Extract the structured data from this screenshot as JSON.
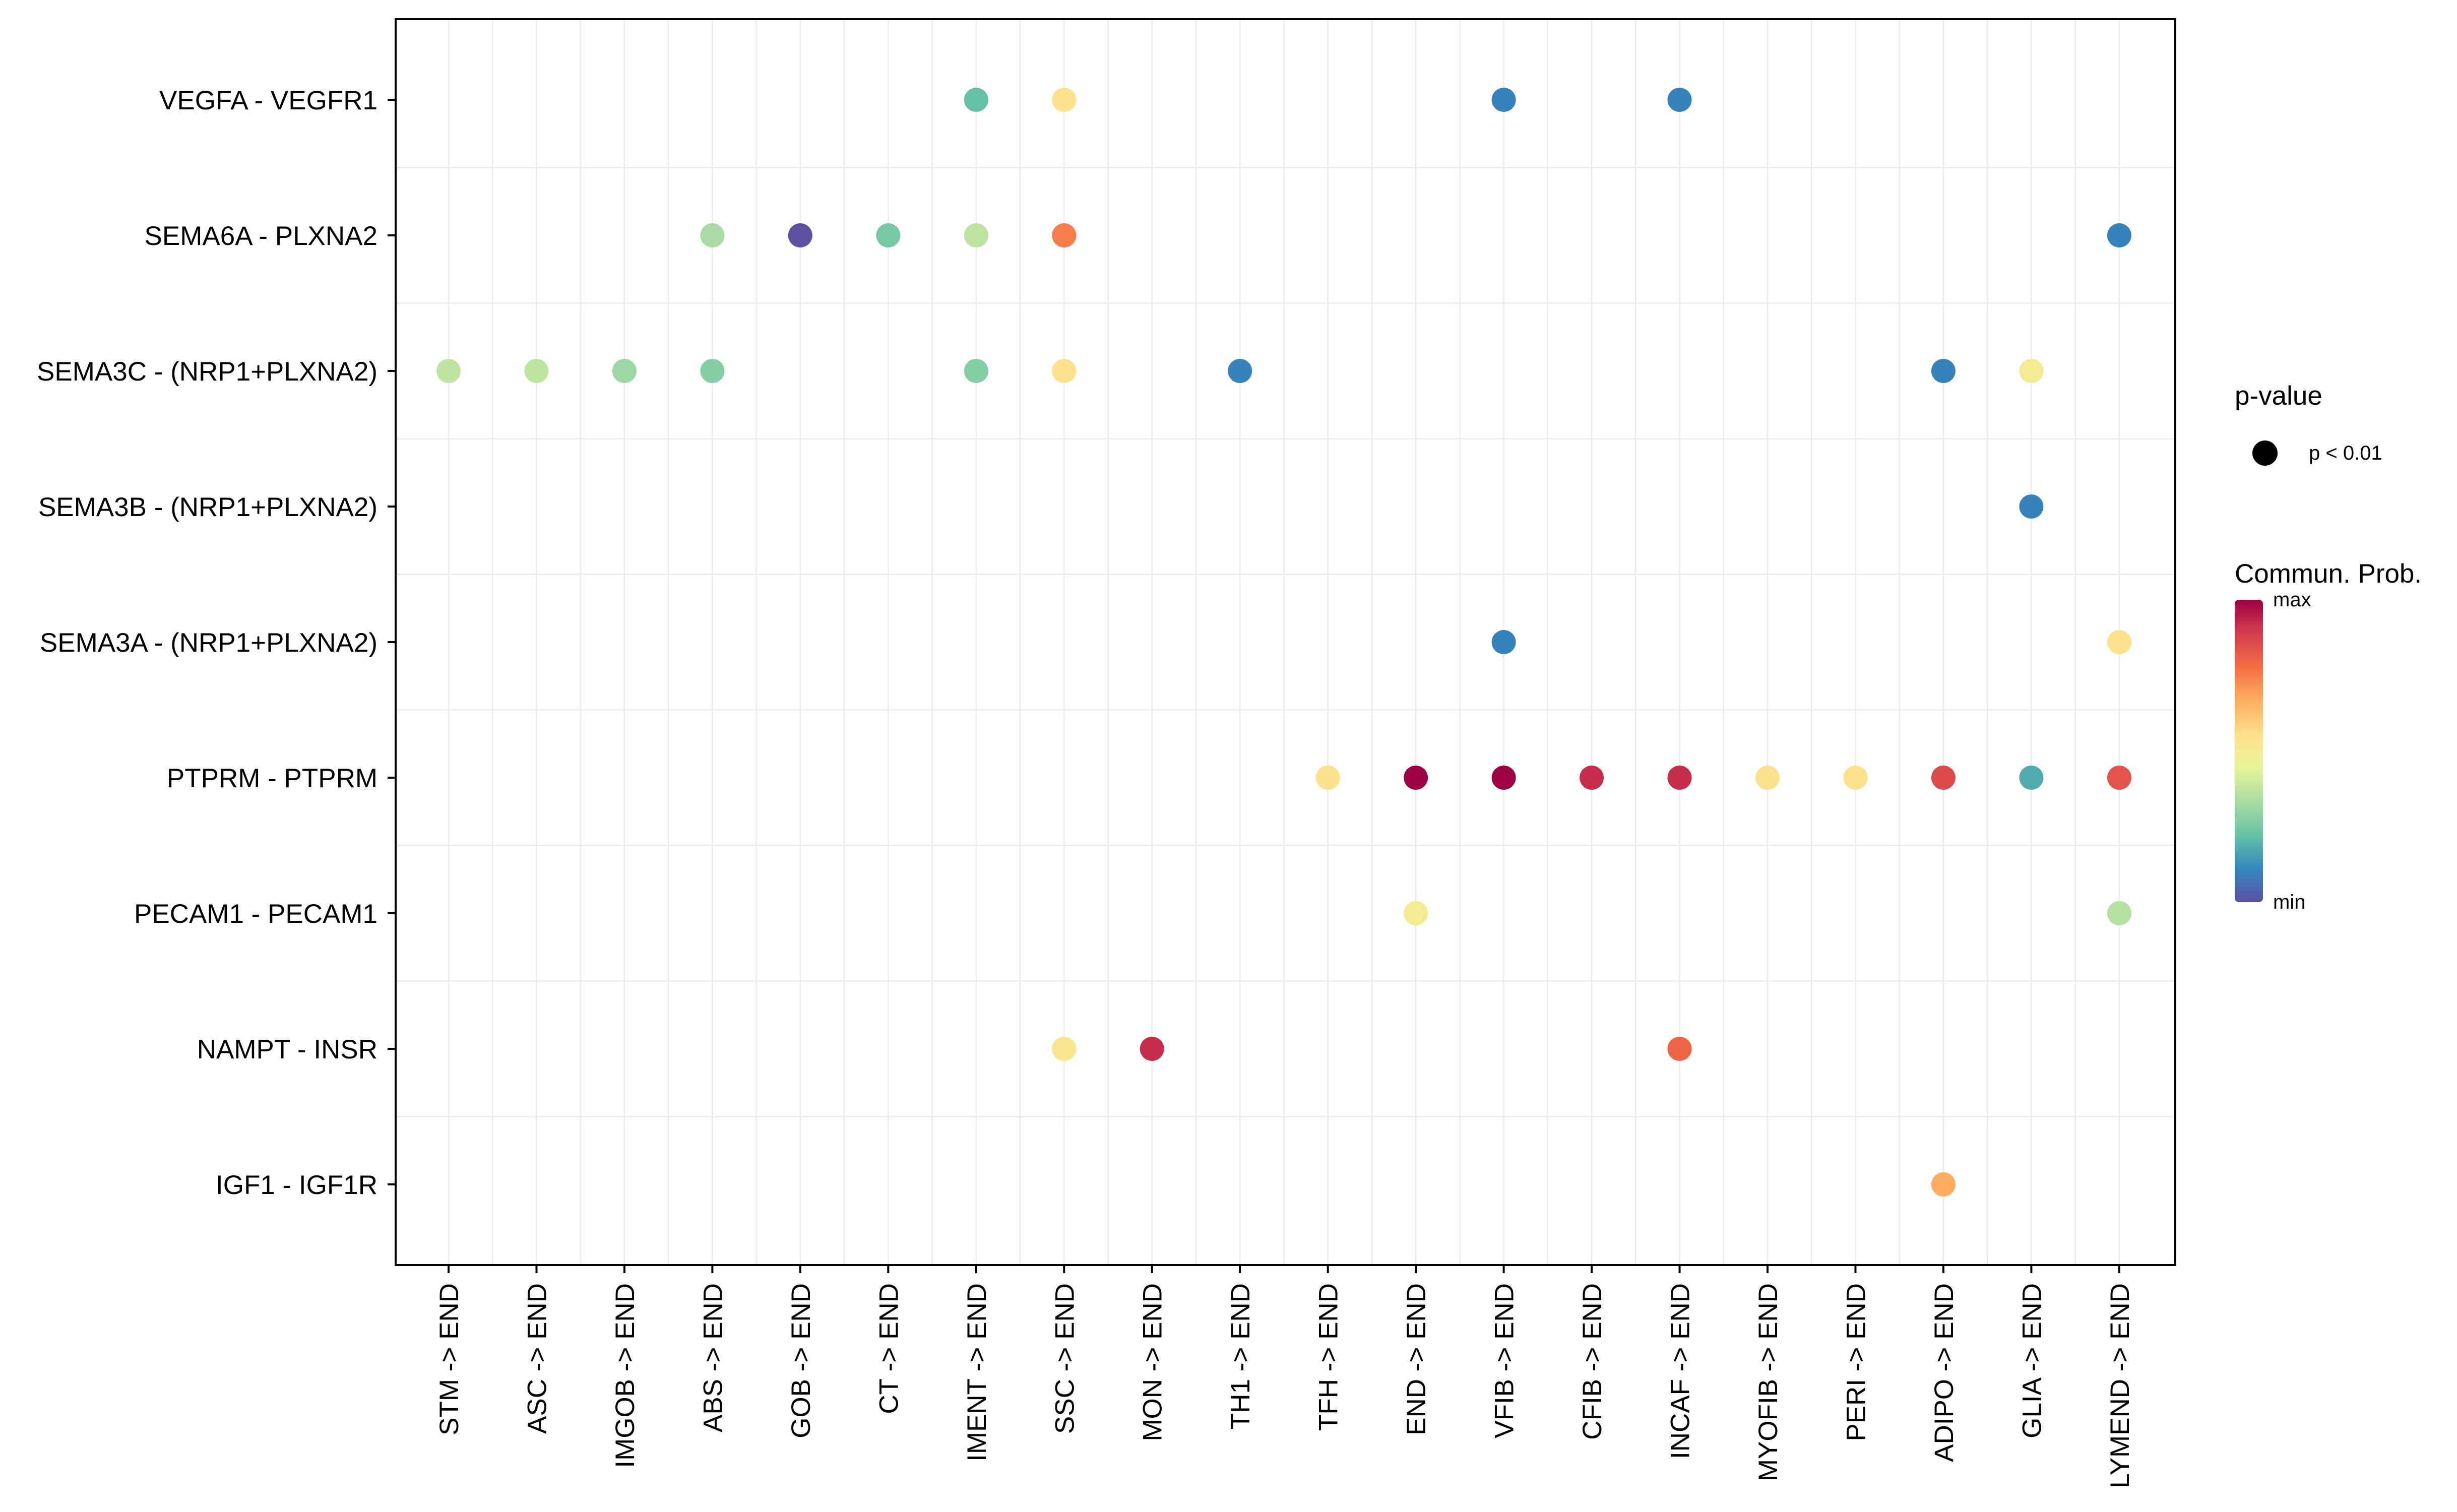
{
  "chart_data": {
    "type": "dot-plot",
    "title": "",
    "xlabel": "",
    "ylabel": "",
    "categories_x": [
      "STM -> END",
      "ASC -> END",
      "IMGOB -> END",
      "ABS -> END",
      "GOB -> END",
      "CT -> END",
      "IMENT -> END",
      "SSC -> END",
      "MON -> END",
      "TH1 -> END",
      "TFH -> END",
      "END -> END",
      "VFIB -> END",
      "CFIB -> END",
      "INCAF -> END",
      "MYOFIB -> END",
      "PERI -> END",
      "ADIPO -> END",
      "GLIA -> END",
      "LYMEND -> END"
    ],
    "categories_y": [
      "VEGFA - VEGFR1",
      "SEMA6A - PLXNA2",
      "SEMA3C - (NRP1+PLXNA2)",
      "SEMA3B - (NRP1+PLXNA2)",
      "SEMA3A - (NRP1+PLXNA2)",
      "PTPRM - PTPRM",
      "PECAM1 - PECAM1",
      "NAMPT - INSR",
      "IGF1 - IGF1R"
    ],
    "value_scale": "relative communication probability, 0 = min, 1 = max",
    "points": [
      {
        "y": "VEGFA - VEGFR1",
        "x": "IMENT -> END",
        "value": 0.22
      },
      {
        "y": "VEGFA - VEGFR1",
        "x": "SSC -> END",
        "value": 0.55
      },
      {
        "y": "VEGFA - VEGFR1",
        "x": "VFIB -> END",
        "value": 0.1
      },
      {
        "y": "VEGFA - VEGFR1",
        "x": "INCAF -> END",
        "value": 0.1
      },
      {
        "y": "SEMA6A - PLXNA2",
        "x": "ABS -> END",
        "value": 0.33
      },
      {
        "y": "SEMA6A - PLXNA2",
        "x": "GOB -> END",
        "value": 0.0
      },
      {
        "y": "SEMA6A - PLXNA2",
        "x": "CT -> END",
        "value": 0.25
      },
      {
        "y": "SEMA6A - PLXNA2",
        "x": "IMENT -> END",
        "value": 0.37
      },
      {
        "y": "SEMA6A - PLXNA2",
        "x": "SSC -> END",
        "value": 0.75
      },
      {
        "y": "SEMA6A - PLXNA2",
        "x": "LYMEND -> END",
        "value": 0.1
      },
      {
        "y": "SEMA3C - (NRP1+PLXNA2)",
        "x": "STM -> END",
        "value": 0.37
      },
      {
        "y": "SEMA3C - (NRP1+PLXNA2)",
        "x": "ASC -> END",
        "value": 0.37
      },
      {
        "y": "SEMA3C - (NRP1+PLXNA2)",
        "x": "IMGOB -> END",
        "value": 0.31
      },
      {
        "y": "SEMA3C - (NRP1+PLXNA2)",
        "x": "ABS -> END",
        "value": 0.27
      },
      {
        "y": "SEMA3C - (NRP1+PLXNA2)",
        "x": "IMENT -> END",
        "value": 0.27
      },
      {
        "y": "SEMA3C - (NRP1+PLXNA2)",
        "x": "SSC -> END",
        "value": 0.55
      },
      {
        "y": "SEMA3C - (NRP1+PLXNA2)",
        "x": "TH1 -> END",
        "value": 0.1
      },
      {
        "y": "SEMA3C - (NRP1+PLXNA2)",
        "x": "ADIPO -> END",
        "value": 0.1
      },
      {
        "y": "SEMA3C - (NRP1+PLXNA2)",
        "x": "GLIA -> END",
        "value": 0.5
      },
      {
        "y": "SEMA3B - (NRP1+PLXNA2)",
        "x": "GLIA -> END",
        "value": 0.1
      },
      {
        "y": "SEMA3A - (NRP1+PLXNA2)",
        "x": "VFIB -> END",
        "value": 0.1
      },
      {
        "y": "SEMA3A - (NRP1+PLXNA2)",
        "x": "LYMEND -> END",
        "value": 0.55
      },
      {
        "y": "PTPRM - PTPRM",
        "x": "TFH -> END",
        "value": 0.55
      },
      {
        "y": "PTPRM - PTPRM",
        "x": "END -> END",
        "value": 1.0
      },
      {
        "y": "PTPRM - PTPRM",
        "x": "VFIB -> END",
        "value": 1.0
      },
      {
        "y": "PTPRM - PTPRM",
        "x": "CFIB -> END",
        "value": 0.92
      },
      {
        "y": "PTPRM - PTPRM",
        "x": "INCAF -> END",
        "value": 0.92
      },
      {
        "y": "PTPRM - PTPRM",
        "x": "MYOFIB -> END",
        "value": 0.55
      },
      {
        "y": "PTPRM - PTPRM",
        "x": "PERI -> END",
        "value": 0.55
      },
      {
        "y": "PTPRM - PTPRM",
        "x": "ADIPO -> END",
        "value": 0.86
      },
      {
        "y": "PTPRM - PTPRM",
        "x": "GLIA -> END",
        "value": 0.18
      },
      {
        "y": "PTPRM - PTPRM",
        "x": "LYMEND -> END",
        "value": 0.84
      },
      {
        "y": "PECAM1 - PECAM1",
        "x": "END -> END",
        "value": 0.5
      },
      {
        "y": "PECAM1 - PECAM1",
        "x": "LYMEND -> END",
        "value": 0.35
      },
      {
        "y": "NAMPT - INSR",
        "x": "SSC -> END",
        "value": 0.52
      },
      {
        "y": "NAMPT - INSR",
        "x": "MON -> END",
        "value": 0.92
      },
      {
        "y": "NAMPT - INSR",
        "x": "INCAF -> END",
        "value": 0.8
      },
      {
        "y": "IGF1 - IGF1R",
        "x": "ADIPO -> END",
        "value": 0.67
      }
    ],
    "legend": {
      "pvalue_title": "p-value",
      "pvalue_entry": "p < 0.01",
      "colorbar_title": "Commun. Prob.",
      "colorbar_max_label": "max",
      "colorbar_min_label": "min",
      "colormap": [
        "#5e4fa2",
        "#3288bd",
        "#66c2a5",
        "#abdda4",
        "#e6f598",
        "#fee08b",
        "#fdae61",
        "#f46d43",
        "#d53e4f",
        "#9e0142"
      ],
      "placement": "right"
    },
    "grid": true
  }
}
